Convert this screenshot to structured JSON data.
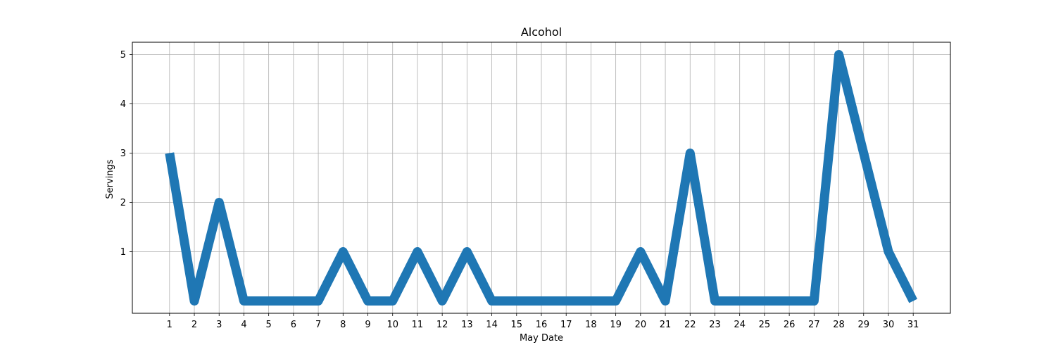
{
  "chart_data": {
    "type": "line",
    "title": "Alcohol",
    "xlabel": "May Date",
    "ylabel": "Servings",
    "x": [
      1,
      2,
      3,
      4,
      5,
      6,
      7,
      8,
      9,
      10,
      11,
      12,
      13,
      14,
      15,
      16,
      17,
      18,
      19,
      20,
      21,
      22,
      23,
      24,
      25,
      26,
      27,
      28,
      29,
      30,
      31
    ],
    "series": [
      {
        "values": [
          3,
          0,
          2,
          0,
          0,
          0,
          0,
          1,
          0,
          0,
          1,
          0,
          1,
          0,
          0,
          0,
          0,
          0,
          0,
          1,
          0,
          3,
          0,
          0,
          0,
          0,
          0,
          5,
          3,
          1,
          0
        ]
      }
    ],
    "xticks": [
      "1",
      "2",
      "3",
      "4",
      "5",
      "6",
      "7",
      "8",
      "9",
      "10",
      "11",
      "12",
      "13",
      "14",
      "15",
      "16",
      "17",
      "18",
      "19",
      "20",
      "21",
      "22",
      "23",
      "24",
      "25",
      "26",
      "27",
      "28",
      "29",
      "30",
      "31"
    ],
    "yticks": [
      "1",
      "2",
      "3",
      "4",
      "5"
    ],
    "xlim": [
      -0.5,
      32.5
    ],
    "ylim": [
      -0.25,
      5.25
    ],
    "grid": true,
    "line_color": "#1f77b4",
    "grid_color": "#b0b0b0"
  }
}
